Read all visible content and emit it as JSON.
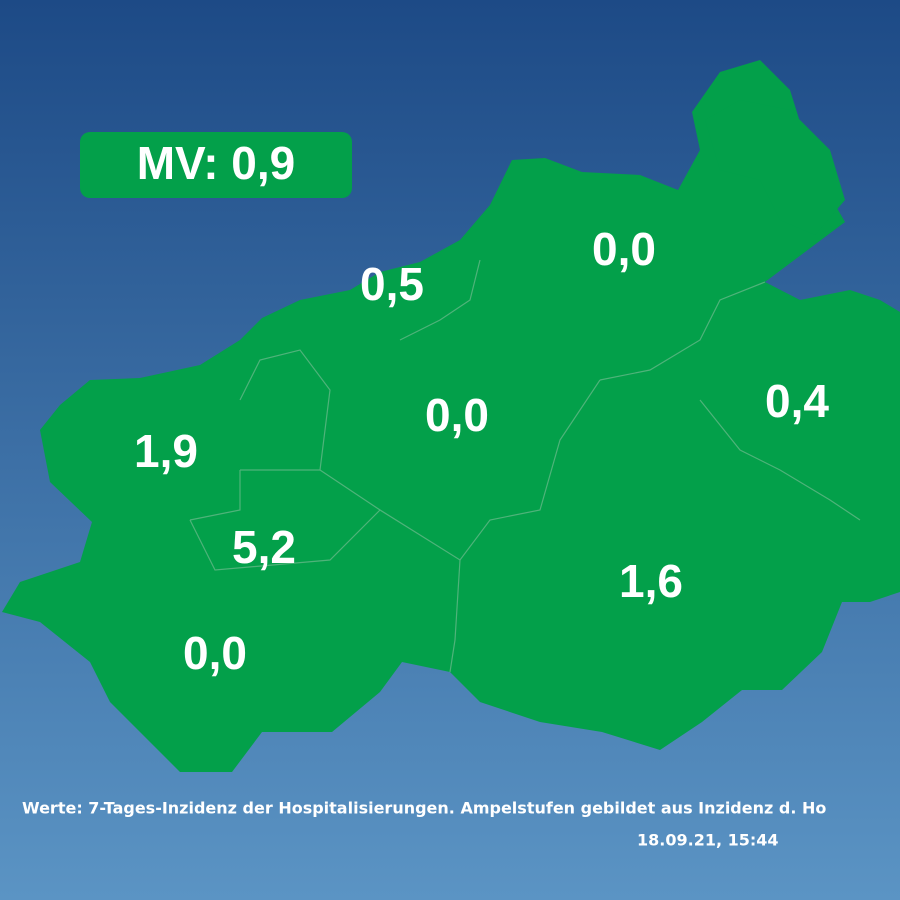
{
  "badge": {
    "label": "MV: 0,9"
  },
  "regions": [
    {
      "label": "0,5"
    },
    {
      "label": "0,0"
    },
    {
      "label": "0,0"
    },
    {
      "label": "0,4"
    },
    {
      "label": "1,9"
    },
    {
      "label": "5,2"
    },
    {
      "label": "1,6"
    },
    {
      "label": "0,0"
    }
  ],
  "footer": {
    "note": "Werte: 7-Tages-Inzidenz der Hospitalisierungen. Ampelstufen gebildet aus Inzidenz d. Ho",
    "timestamp": "18.09.21, 15:44"
  }
}
